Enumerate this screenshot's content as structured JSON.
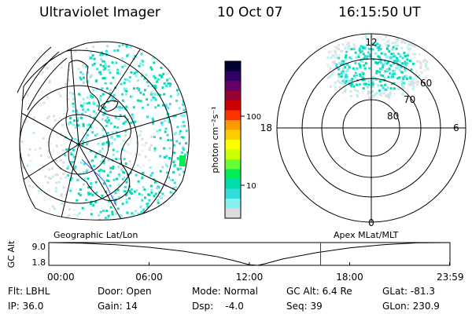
{
  "header": {
    "instrument": "Ultraviolet Imager",
    "date": "10 Oct 07",
    "time": "16:15:50 UT"
  },
  "colorbar": {
    "unit_label": "photon cm⁻²s⁻¹",
    "tick_labels": [
      "100",
      "10"
    ],
    "colors": [
      "#000033",
      "#330066",
      "#660066",
      "#990033",
      "#cc0000",
      "#ff3300",
      "#ff9900",
      "#ffcc00",
      "#ffff00",
      "#ccff00",
      "#66ff33",
      "#00ee55",
      "#00ddaa",
      "#33dddd",
      "#88eeee",
      "#dddddd"
    ]
  },
  "polar_plot": {
    "mlt_labels": [
      "12",
      "18",
      "6",
      "0"
    ],
    "mlat_labels": [
      "60",
      "70",
      "80"
    ]
  },
  "map_labels": {
    "left": "Geographic Lat/Lon",
    "right": "Apex MLat/MLT"
  },
  "chart_data": {
    "type": "line",
    "title": "",
    "ylabel": "GC Alt",
    "ytick_labels": [
      "9.0",
      "1.8"
    ],
    "ylim": [
      1.8,
      9.0
    ],
    "xtick_labels": [
      "00:00",
      "06:00",
      "12:00",
      "18:00",
      "23:59"
    ],
    "xlim": [
      0,
      24
    ],
    "series": [
      {
        "x": [
          0,
          2,
          4,
          6,
          8,
          10,
          11,
          12,
          12.5,
          13,
          14,
          16,
          18,
          20,
          22,
          23.98
        ],
        "values": [
          9.0,
          8.8,
          8.3,
          7.5,
          6.3,
          4.6,
          3.4,
          2.0,
          1.8,
          2.4,
          3.8,
          5.8,
          7.3,
          8.3,
          8.9,
          9.0
        ]
      }
    ],
    "current_time_hours": 16.26
  },
  "status": {
    "flt": "Flt: LBHL",
    "door": "Door: Open",
    "mode": "Mode: Normal",
    "gc_alt": "GC Alt: 6.4 Re",
    "glat": "GLat: -81.3",
    "ip": "IP: 36.0",
    "gain": "Gain: 14",
    "dsp": "Dsp:    -4.0",
    "seq": "Seq: 39",
    "glon": "GLon: 230.9"
  }
}
